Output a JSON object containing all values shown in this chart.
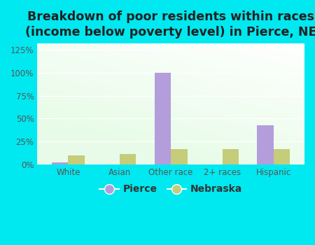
{
  "title": "Breakdown of poor residents within races\n(income below poverty level) in Pierce, NE",
  "categories": [
    "White",
    "Asian",
    "Other race",
    "2+ races",
    "Hispanic"
  ],
  "pierce_values": [
    2,
    0,
    100,
    0,
    43
  ],
  "nebraska_values": [
    10,
    11,
    17,
    17,
    17
  ],
  "pierce_color": "#b39ddb",
  "nebraska_color": "#c5cc7a",
  "background_outer": "#00e8f0",
  "ylim": [
    0,
    132
  ],
  "yticks": [
    0,
    25,
    50,
    75,
    100,
    125
  ],
  "ytick_labels": [
    "0%",
    "25%",
    "50%",
    "75%",
    "100%",
    "125%"
  ],
  "bar_width": 0.32,
  "legend_labels": [
    "Pierce",
    "Nebraska"
  ],
  "title_fontsize": 12.5,
  "tick_fontsize": 8.5,
  "legend_fontsize": 10
}
